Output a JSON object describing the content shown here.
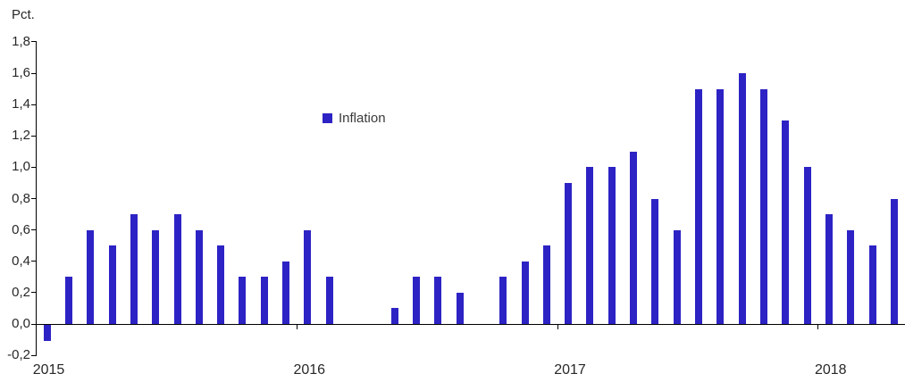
{
  "chart": {
    "unit_label": "Pct.",
    "legend": {
      "label": "Inflation"
    },
    "colors": {
      "bar": "#2d23c4",
      "axis": "#000000",
      "text": "#282828"
    },
    "y_tick_labels": [
      "1,8",
      "1,6",
      "1,4",
      "1,2",
      "1,0",
      "0,8",
      "0,6",
      "0,4",
      "0,2",
      "0,0",
      "-0,2"
    ],
    "x_year_labels": [
      "2015",
      "2016",
      "2017",
      "2018"
    ]
  },
  "chart_data": {
    "type": "bar",
    "title": "",
    "xlabel": "",
    "ylabel": "Pct.",
    "ylim": [
      -0.2,
      1.8
    ],
    "y_step": 0.2,
    "grid": false,
    "decimal_separator": ",",
    "legend_position": "inside-top-center-left",
    "x": [
      "2015-01",
      "2015-02",
      "2015-03",
      "2015-04",
      "2015-05",
      "2015-06",
      "2015-07",
      "2015-08",
      "2015-09",
      "2015-10",
      "2015-11",
      "2015-12",
      "2016-01",
      "2016-02",
      "2016-03",
      "2016-04",
      "2016-05",
      "2016-06",
      "2016-07",
      "2016-08",
      "2016-09",
      "2016-10",
      "2016-11",
      "2016-12",
      "2017-01",
      "2017-02",
      "2017-03",
      "2017-04",
      "2017-05",
      "2017-06",
      "2017-07",
      "2017-08",
      "2017-09",
      "2017-10",
      "2017-11",
      "2017-12",
      "2018-01",
      "2018-02",
      "2018-03",
      "2018-04"
    ],
    "series": [
      {
        "name": "Inflation",
        "values": [
          -0.1,
          0.3,
          0.6,
          0.5,
          0.7,
          0.6,
          0.7,
          0.6,
          0.5,
          0.3,
          0.3,
          0.4,
          0.6,
          0.3,
          0.0,
          0.0,
          0.1,
          0.3,
          0.3,
          0.2,
          0.0,
          0.3,
          0.4,
          0.5,
          0.9,
          1.0,
          1.0,
          1.1,
          0.8,
          0.6,
          1.5,
          1.5,
          1.6,
          1.5,
          1.3,
          1.0,
          0.7,
          0.6,
          0.5,
          0.8
        ]
      }
    ],
    "x_year_tick_boundaries": [
      "2015",
      "2016",
      "2017",
      "2018"
    ]
  }
}
